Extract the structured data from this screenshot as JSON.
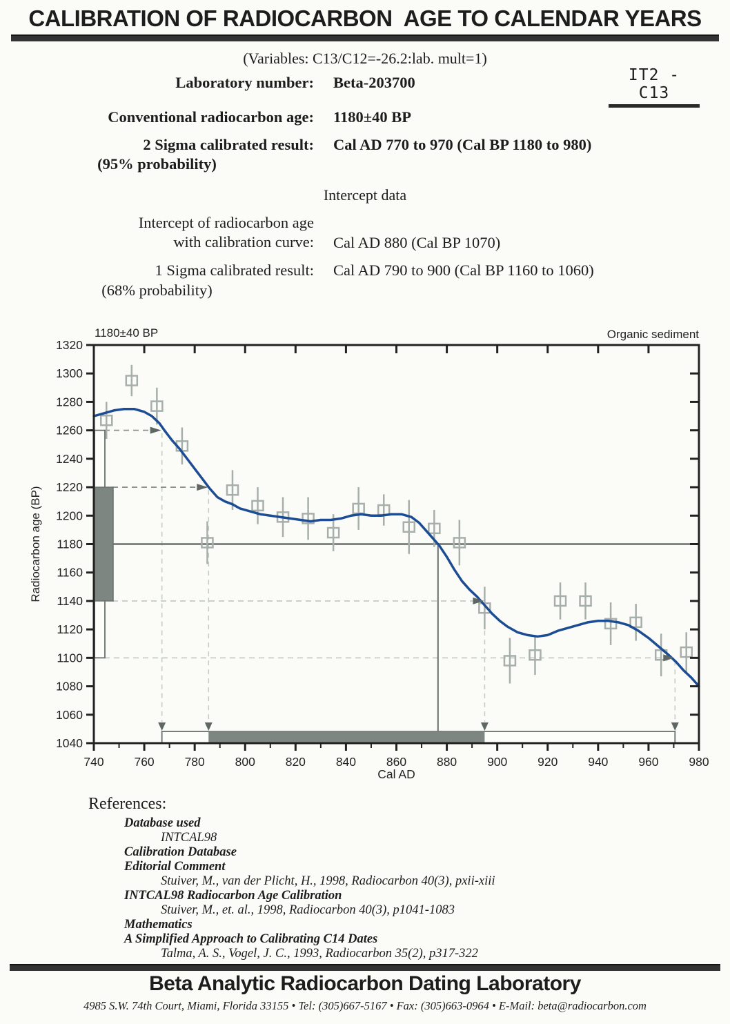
{
  "page": {
    "title": "CALIBRATION OF RADIOCARBON  AGE TO CALENDAR YEARS",
    "variables_line": "(Variables:  C13/C12=-26.2:lab. mult=1)",
    "corner_mark": "IT2 - C13",
    "fields": {
      "lab_number_label": "Laboratory number:",
      "lab_number_value": "Beta-203700",
      "conventional_age_label": "Conventional radiocarbon age:",
      "conventional_age_value": "1180±40 BP",
      "two_sigma_label": "2 Sigma calibrated result:",
      "two_sigma_prob": "(95% probability)",
      "two_sigma_value": "Cal AD 770 to 970 (Cal BP 1180 to 980)",
      "intercept_heading": "Intercept data",
      "intercept_label_line1": "Intercept of radiocarbon age",
      "intercept_label_line2": "with calibration curve:",
      "intercept_value": "Cal AD 880 (Cal BP 1070)",
      "one_sigma_label": "1 Sigma calibrated result:",
      "one_sigma_prob": "(68% probability)",
      "one_sigma_value": "Cal AD 790 to 900 (Cal BP 1160 to 1060)"
    }
  },
  "chart_data": {
    "type": "line",
    "label_top_left": "1180±40 BP",
    "label_top_right": "Organic sediment",
    "xlabel": "Cal AD",
    "ylabel": "Radiocarbon age (BP)",
    "xlim": [
      740,
      980
    ],
    "ylim": [
      1040,
      1320
    ],
    "x_major_tick": 20,
    "x_minor_tick": 10,
    "y_major_tick": 20,
    "mean_bp": 1180,
    "intercept_line_x": 876.5,
    "sigma_ranges": {
      "radiocarbon_1sigma": [
        1140,
        1220
      ],
      "radiocarbon_2sigma": [
        1100,
        1260
      ],
      "cal_1sigma": [
        785.5,
        895
      ],
      "cal_2sigma": [
        767,
        970.5
      ]
    },
    "calibration_curve": [
      [
        740,
        1270
      ],
      [
        744,
        1272
      ],
      [
        748,
        1274
      ],
      [
        752,
        1275
      ],
      [
        756,
        1275
      ],
      [
        760,
        1273
      ],
      [
        763,
        1270
      ],
      [
        766,
        1265
      ],
      [
        768,
        1260
      ],
      [
        771,
        1253
      ],
      [
        774,
        1247
      ],
      [
        777,
        1240
      ],
      [
        780,
        1233
      ],
      [
        783,
        1226
      ],
      [
        786,
        1219
      ],
      [
        789,
        1213
      ],
      [
        792,
        1210
      ],
      [
        795,
        1208
      ],
      [
        798,
        1205
      ],
      [
        802,
        1203
      ],
      [
        806,
        1201
      ],
      [
        810,
        1200
      ],
      [
        814,
        1199
      ],
      [
        818,
        1198
      ],
      [
        822,
        1197
      ],
      [
        826,
        1196
      ],
      [
        830,
        1197
      ],
      [
        834,
        1197
      ],
      [
        838,
        1198
      ],
      [
        842,
        1200
      ],
      [
        846,
        1201
      ],
      [
        850,
        1200
      ],
      [
        854,
        1200
      ],
      [
        858,
        1201
      ],
      [
        862,
        1201
      ],
      [
        866,
        1199
      ],
      [
        869,
        1195
      ],
      [
        872,
        1189
      ],
      [
        875,
        1183
      ],
      [
        877,
        1179
      ],
      [
        880,
        1171
      ],
      [
        883,
        1162
      ],
      [
        886,
        1154
      ],
      [
        889,
        1148
      ],
      [
        892,
        1143
      ],
      [
        895,
        1137
      ],
      [
        898,
        1131
      ],
      [
        901,
        1126
      ],
      [
        904,
        1122
      ],
      [
        908,
        1118
      ],
      [
        912,
        1116
      ],
      [
        916,
        1115
      ],
      [
        920,
        1116
      ],
      [
        924,
        1119
      ],
      [
        928,
        1121
      ],
      [
        932,
        1123
      ],
      [
        936,
        1125
      ],
      [
        940,
        1126
      ],
      [
        944,
        1126
      ],
      [
        948,
        1125
      ],
      [
        952,
        1123
      ],
      [
        956,
        1119
      ],
      [
        960,
        1114
      ],
      [
        964,
        1108
      ],
      [
        968,
        1102
      ],
      [
        971,
        1097
      ],
      [
        974,
        1091
      ],
      [
        977,
        1086
      ],
      [
        980,
        1080
      ]
    ],
    "data_points": [
      [
        745,
        1267,
        13
      ],
      [
        755,
        1295,
        11
      ],
      [
        765,
        1277,
        13
      ],
      [
        775,
        1249,
        13
      ],
      [
        785,
        1181,
        15
      ],
      [
        795,
        1218,
        14
      ],
      [
        805,
        1207,
        13
      ],
      [
        815,
        1199,
        14
      ],
      [
        825,
        1198,
        15
      ],
      [
        835,
        1188,
        13
      ],
      [
        845,
        1205,
        15
      ],
      [
        855,
        1204,
        11
      ],
      [
        865,
        1192,
        19
      ],
      [
        875,
        1191,
        13
      ],
      [
        885,
        1181,
        16
      ],
      [
        895,
        1135,
        15
      ],
      [
        905,
        1098,
        16
      ],
      [
        915,
        1102,
        14
      ],
      [
        925,
        1140,
        13
      ],
      [
        935,
        1140,
        13
      ],
      [
        945,
        1124,
        15
      ],
      [
        955,
        1125,
        13
      ],
      [
        965,
        1102,
        15
      ],
      [
        975,
        1104,
        14
      ]
    ],
    "colors": {
      "curve": "#1c4c94",
      "points": "#a7afaa",
      "bars_fill": "#7d8681",
      "ref_lines": "#68706c",
      "dash_dark": "#8b928e",
      "dash_light": "#c6ccc6",
      "arrows": "#5f6764",
      "axis": "#222222"
    }
  },
  "references": {
    "heading": "References:",
    "items": [
      {
        "style": "bold",
        "text": "Database used"
      },
      {
        "style": "cite",
        "text": "INTCAL98"
      },
      {
        "style": "bold",
        "text": "Calibration Database"
      },
      {
        "style": "bold",
        "text": "Editorial Comment"
      },
      {
        "style": "cite",
        "text": "Stuiver, M., van der Plicht, H., 1998, Radiocarbon 40(3), pxii-xiii"
      },
      {
        "style": "bold",
        "text": "INTCAL98 Radiocarbon Age Calibration"
      },
      {
        "style": "cite",
        "text": "Stuiver, M., et. al., 1998, Radiocarbon 40(3), p1041-1083"
      },
      {
        "style": "bold",
        "text": "Mathematics"
      },
      {
        "style": "bold",
        "text": "A Simplified Approach to Calibrating C14 Dates"
      },
      {
        "style": "cite",
        "text": "Talma, A. S., Vogel, J. C., 1993, Radiocarbon 35(2), p317-322"
      }
    ]
  },
  "footer": {
    "name": "Beta Analytic Radiocarbon Dating Laboratory",
    "address": "4985 S.W. 74th Court, Miami, Florida 33155 • Tel: (305)667-5167 • Fax: (305)663-0964 • E-Mail: beta@radiocarbon.com"
  }
}
